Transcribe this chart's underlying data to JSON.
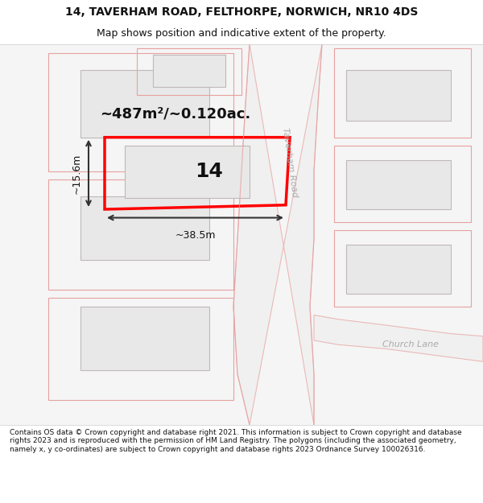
{
  "title_line1": "14, TAVERHAM ROAD, FELTHORPE, NORWICH, NR10 4DS",
  "title_line2": "Map shows position and indicative extent of the property.",
  "footer_text": "Contains OS data © Crown copyright and database right 2021. This information is subject to Crown copyright and database rights 2023 and is reproduced with the permission of HM Land Registry. The polygons (including the associated geometry, namely x, y co-ordinates) are subject to Crown copyright and database rights 2023 Ordnance Survey 100026316.",
  "background_color": "#ffffff",
  "map_bg_color": "#f8f8f8",
  "road_fill_color": "#f0f0f0",
  "road_stroke_color": "#e8a0a0",
  "building_fill_color": "#e8e8e8",
  "building_stroke_color": "#cccccc",
  "highlight_color": "#ff0000",
  "dimension_color": "#333333",
  "road_label": "Taverham Road",
  "road_label2": "Church Lane",
  "plot_label": "14",
  "area_label": "~487m²/~0.120ac.",
  "width_label": "~38.5m",
  "height_label": "~15.6m"
}
